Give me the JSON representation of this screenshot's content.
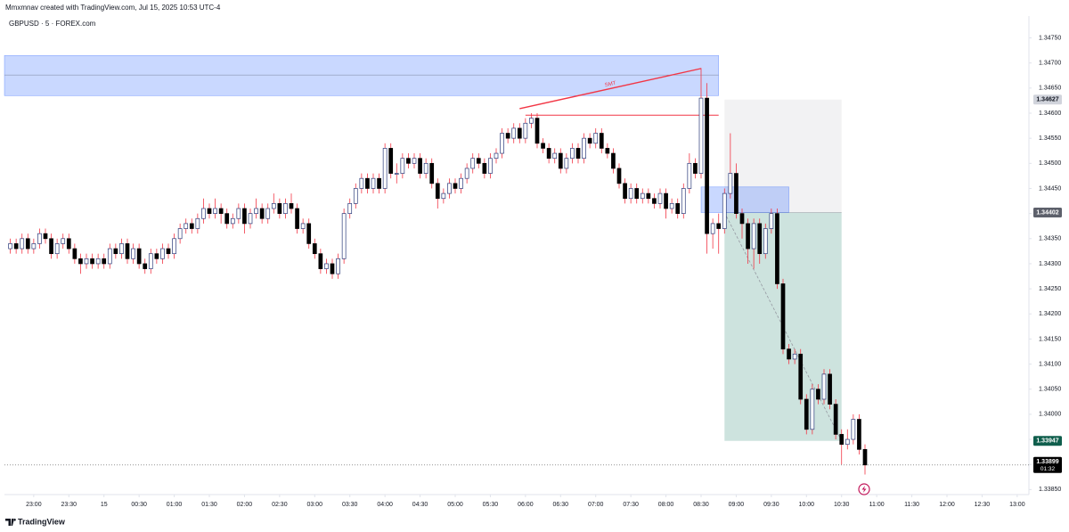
{
  "header": "Mmxmnav created with TradingView.com, Jul 15, 2025 10:53 UTC-4",
  "footer": "TradingView",
  "chart_data": {
    "type": "candlestick",
    "title": "GBPUSD · 5 · FOREX.com",
    "colors": {
      "up": "#ffffff",
      "up_border": "#2a3a7a",
      "down": "#000000",
      "wick": "#f23645"
    },
    "xlim": [
      -1,
      174
    ],
    "ylim": [
      1.3384,
      1.3479
    ],
    "xticks": [
      {
        "value": 4,
        "label": "23:00"
      },
      {
        "value": 10,
        "label": "23:30"
      },
      {
        "value": 16,
        "label": "15"
      },
      {
        "value": 22,
        "label": "00:30"
      },
      {
        "value": 28,
        "label": "01:00"
      },
      {
        "value": 34,
        "label": "01:30"
      },
      {
        "value": 40,
        "label": "02:00"
      },
      {
        "value": 46,
        "label": "02:30"
      },
      {
        "value": 52,
        "label": "03:00"
      },
      {
        "value": 58,
        "label": "03:30"
      },
      {
        "value": 64,
        "label": "04:00"
      },
      {
        "value": 70,
        "label": "04:30"
      },
      {
        "value": 76,
        "label": "05:00"
      },
      {
        "value": 82,
        "label": "05:30"
      },
      {
        "value": 88,
        "label": "06:00"
      },
      {
        "value": 94,
        "label": "06:30"
      },
      {
        "value": 100,
        "label": "07:00"
      },
      {
        "value": 106,
        "label": "07:30"
      },
      {
        "value": 112,
        "label": "08:00"
      },
      {
        "value": 118,
        "label": "08:30"
      },
      {
        "value": 124,
        "label": "09:00"
      },
      {
        "value": 130,
        "label": "09:30"
      },
      {
        "value": 136,
        "label": "10:00"
      },
      {
        "value": 142,
        "label": "10:30"
      },
      {
        "value": 148,
        "label": "11:00"
      },
      {
        "value": 154,
        "label": "11:30"
      },
      {
        "value": 160,
        "label": "12:00"
      },
      {
        "value": 166,
        "label": "12:30"
      },
      {
        "value": 172,
        "label": "13:00"
      }
    ],
    "yticks": [
      {
        "value": 1.3475,
        "label": "1.34750"
      },
      {
        "value": 1.347,
        "label": "1.34700"
      },
      {
        "value": 1.3465,
        "label": "1.34650"
      },
      {
        "value": 1.346,
        "label": "1.34600"
      },
      {
        "value": 1.3455,
        "label": "1.34550"
      },
      {
        "value": 1.345,
        "label": "1.34500"
      },
      {
        "value": 1.3445,
        "label": "1.34450"
      },
      {
        "value": 1.344,
        "label": "1.34400"
      },
      {
        "value": 1.3435,
        "label": "1.34350"
      },
      {
        "value": 1.343,
        "label": "1.34300"
      },
      {
        "value": 1.3425,
        "label": "1.34250"
      },
      {
        "value": 1.342,
        "label": "1.34200"
      },
      {
        "value": 1.3415,
        "label": "1.34150"
      },
      {
        "value": 1.341,
        "label": "1.34100"
      },
      {
        "value": 1.3405,
        "label": "1.34050"
      },
      {
        "value": 1.34,
        "label": "1.34000"
      },
      {
        "value": 1.3395,
        "label": "1.33950"
      },
      {
        "value": 1.339,
        "label": "1.33900"
      },
      {
        "value": 1.3385,
        "label": "1.33850"
      }
    ],
    "ohlc": [
      [
        1.3433,
        1.3435,
        1.3432,
        1.3434
      ],
      [
        1.3434,
        1.3435,
        1.3432,
        1.3433
      ],
      [
        1.3433,
        1.3436,
        1.3432,
        1.3435
      ],
      [
        1.3435,
        1.3436,
        1.3432,
        1.3433
      ],
      [
        1.3433,
        1.3435,
        1.3432,
        1.3434
      ],
      [
        1.3434,
        1.3437,
        1.3433,
        1.3436
      ],
      [
        1.3436,
        1.3437,
        1.3434,
        1.3435
      ],
      [
        1.3435,
        1.3436,
        1.3431,
        1.3432
      ],
      [
        1.3432,
        1.3435,
        1.3431,
        1.3434
      ],
      [
        1.3434,
        1.3436,
        1.3433,
        1.3435
      ],
      [
        1.3435,
        1.3436,
        1.3432,
        1.3433
      ],
      [
        1.3433,
        1.3434,
        1.343,
        1.3431
      ],
      [
        1.3431,
        1.3432,
        1.3428,
        1.343
      ],
      [
        1.343,
        1.3432,
        1.3429,
        1.3431
      ],
      [
        1.3431,
        1.3432,
        1.3429,
        1.343
      ],
      [
        1.343,
        1.3432,
        1.3429,
        1.3431
      ],
      [
        1.3431,
        1.3432,
        1.3429,
        1.343
      ],
      [
        1.343,
        1.3434,
        1.3429,
        1.3433
      ],
      [
        1.3433,
        1.3434,
        1.3431,
        1.3432
      ],
      [
        1.3432,
        1.3435,
        1.3431,
        1.3434
      ],
      [
        1.3434,
        1.3435,
        1.343,
        1.3431
      ],
      [
        1.3431,
        1.3434,
        1.343,
        1.3433
      ],
      [
        1.3433,
        1.3434,
        1.3429,
        1.343
      ],
      [
        1.343,
        1.3431,
        1.3428,
        1.3429
      ],
      [
        1.3429,
        1.3433,
        1.3428,
        1.3432
      ],
      [
        1.3432,
        1.3433,
        1.343,
        1.3431
      ],
      [
        1.3431,
        1.3434,
        1.343,
        1.3433
      ],
      [
        1.3433,
        1.3434,
        1.3431,
        1.3432
      ],
      [
        1.3432,
        1.3436,
        1.3431,
        1.3435
      ],
      [
        1.3435,
        1.3438,
        1.3434,
        1.3437
      ],
      [
        1.3437,
        1.3439,
        1.3436,
        1.3438
      ],
      [
        1.3438,
        1.3439,
        1.3436,
        1.3437
      ],
      [
        1.3437,
        1.344,
        1.3436,
        1.3439
      ],
      [
        1.3439,
        1.3443,
        1.3438,
        1.3441
      ],
      [
        1.3441,
        1.3442,
        1.3439,
        1.344
      ],
      [
        1.344,
        1.3443,
        1.3439,
        1.3441
      ],
      [
        1.3441,
        1.3442,
        1.3438,
        1.344
      ],
      [
        1.344,
        1.3441,
        1.3437,
        1.3438
      ],
      [
        1.3438,
        1.344,
        1.3437,
        1.3439
      ],
      [
        1.3439,
        1.3442,
        1.3438,
        1.3441
      ],
      [
        1.3441,
        1.3442,
        1.3436,
        1.3438
      ],
      [
        1.3438,
        1.3441,
        1.3437,
        1.344
      ],
      [
        1.344,
        1.3443,
        1.3439,
        1.3441
      ],
      [
        1.3441,
        1.3442,
        1.3438,
        1.3439
      ],
      [
        1.3439,
        1.3442,
        1.3438,
        1.3441
      ],
      [
        1.3441,
        1.3444,
        1.344,
        1.3442
      ],
      [
        1.3442,
        1.3443,
        1.3439,
        1.344
      ],
      [
        1.344,
        1.3443,
        1.3439,
        1.3442
      ],
      [
        1.3442,
        1.3444,
        1.344,
        1.3441
      ],
      [
        1.3441,
        1.3442,
        1.3436,
        1.3437
      ],
      [
        1.3437,
        1.3439,
        1.3436,
        1.3438
      ],
      [
        1.3438,
        1.3439,
        1.3433,
        1.3434
      ],
      [
        1.3434,
        1.3435,
        1.3431,
        1.3432
      ],
      [
        1.3432,
        1.3433,
        1.3428,
        1.3429
      ],
      [
        1.3429,
        1.3431,
        1.3428,
        1.343
      ],
      [
        1.343,
        1.3431,
        1.3427,
        1.3428
      ],
      [
        1.3428,
        1.3432,
        1.3427,
        1.3431
      ],
      [
        1.3431,
        1.3441,
        1.343,
        1.344
      ],
      [
        1.344,
        1.3443,
        1.3439,
        1.3442
      ],
      [
        1.3442,
        1.3446,
        1.3441,
        1.3445
      ],
      [
        1.3445,
        1.3448,
        1.3444,
        1.3447
      ],
      [
        1.3447,
        1.3448,
        1.3444,
        1.3445
      ],
      [
        1.3445,
        1.3448,
        1.3444,
        1.3447
      ],
      [
        1.3447,
        1.3448,
        1.3444,
        1.3445
      ],
      [
        1.3445,
        1.3454,
        1.3444,
        1.3453
      ],
      [
        1.3453,
        1.3454,
        1.3447,
        1.3448
      ],
      [
        1.3448,
        1.345,
        1.3446,
        1.3448
      ],
      [
        1.3448,
        1.3452,
        1.3447,
        1.3451
      ],
      [
        1.3451,
        1.3452,
        1.3449,
        1.345
      ],
      [
        1.345,
        1.3452,
        1.3449,
        1.3451
      ],
      [
        1.3451,
        1.3452,
        1.3447,
        1.3448
      ],
      [
        1.3448,
        1.3451,
        1.3447,
        1.345
      ],
      [
        1.345,
        1.3451,
        1.3445,
        1.3446
      ],
      [
        1.3446,
        1.3447,
        1.3441,
        1.3443
      ],
      [
        1.3443,
        1.3445,
        1.3442,
        1.3444
      ],
      [
        1.3444,
        1.3447,
        1.3443,
        1.3446
      ],
      [
        1.3446,
        1.3447,
        1.3444,
        1.3445
      ],
      [
        1.3445,
        1.3448,
        1.3444,
        1.3447
      ],
      [
        1.3447,
        1.345,
        1.3446,
        1.3449
      ],
      [
        1.3449,
        1.3452,
        1.3448,
        1.3451
      ],
      [
        1.3451,
        1.3452,
        1.3449,
        1.345
      ],
      [
        1.345,
        1.3451,
        1.3447,
        1.3448
      ],
      [
        1.3448,
        1.3452,
        1.3447,
        1.3451
      ],
      [
        1.3451,
        1.3453,
        1.345,
        1.3452
      ],
      [
        1.3452,
        1.3457,
        1.3451,
        1.3456
      ],
      [
        1.3456,
        1.3457,
        1.3454,
        1.3455
      ],
      [
        1.3455,
        1.3458,
        1.3454,
        1.3457
      ],
      [
        1.3457,
        1.3458,
        1.3454,
        1.3455
      ],
      [
        1.3455,
        1.3459,
        1.3454,
        1.3458
      ],
      [
        1.3458,
        1.346,
        1.3457,
        1.3459
      ],
      [
        1.3459,
        1.346,
        1.3453,
        1.3454
      ],
      [
        1.3454,
        1.3455,
        1.3452,
        1.3453
      ],
      [
        1.3453,
        1.3454,
        1.345,
        1.3451
      ],
      [
        1.3451,
        1.3453,
        1.345,
        1.3452
      ],
      [
        1.3452,
        1.3453,
        1.3448,
        1.3449
      ],
      [
        1.3449,
        1.3452,
        1.3448,
        1.3451
      ],
      [
        1.3451,
        1.3454,
        1.345,
        1.3453
      ],
      [
        1.3453,
        1.3454,
        1.345,
        1.3451
      ],
      [
        1.3451,
        1.3456,
        1.345,
        1.3455
      ],
      [
        1.3455,
        1.3456,
        1.3453,
        1.3454
      ],
      [
        1.3454,
        1.3457,
        1.3453,
        1.3456
      ],
      [
        1.3456,
        1.3457,
        1.3452,
        1.3453
      ],
      [
        1.3453,
        1.3454,
        1.3451,
        1.3452
      ],
      [
        1.3452,
        1.3453,
        1.3448,
        1.3449
      ],
      [
        1.3449,
        1.345,
        1.3445,
        1.3446
      ],
      [
        1.3446,
        1.3447,
        1.3442,
        1.3443
      ],
      [
        1.3443,
        1.3446,
        1.3442,
        1.3445
      ],
      [
        1.3445,
        1.3446,
        1.3442,
        1.3443
      ],
      [
        1.3443,
        1.3445,
        1.3442,
        1.3444
      ],
      [
        1.3444,
        1.3445,
        1.3442,
        1.3443
      ],
      [
        1.3443,
        1.3444,
        1.3441,
        1.3442
      ],
      [
        1.3442,
        1.3445,
        1.3441,
        1.3444
      ],
      [
        1.3444,
        1.3445,
        1.3439,
        1.3441
      ],
      [
        1.3441,
        1.3443,
        1.344,
        1.3442
      ],
      [
        1.3442,
        1.3443,
        1.3439,
        1.344
      ],
      [
        1.344,
        1.3446,
        1.3439,
        1.3445
      ],
      [
        1.3445,
        1.3452,
        1.3444,
        1.345
      ],
      [
        1.345,
        1.3451,
        1.3447,
        1.3448
      ],
      [
        1.3448,
        1.3469,
        1.3447,
        1.3463
      ],
      [
        1.3463,
        1.3466,
        1.3432,
        1.3436
      ],
      [
        1.3436,
        1.3439,
        1.3433,
        1.3438
      ],
      [
        1.3438,
        1.344,
        1.3432,
        1.3437
      ],
      [
        1.3437,
        1.3445,
        1.3436,
        1.3444
      ],
      [
        1.3444,
        1.3456,
        1.3443,
        1.3448
      ],
      [
        1.3448,
        1.345,
        1.3439,
        1.344
      ],
      [
        1.344,
        1.3441,
        1.3435,
        1.3438
      ],
      [
        1.3438,
        1.3439,
        1.343,
        1.3433
      ],
      [
        1.3433,
        1.3439,
        1.3429,
        1.3438
      ],
      [
        1.3438,
        1.3439,
        1.343,
        1.3432
      ],
      [
        1.3432,
        1.3438,
        1.3431,
        1.3437
      ],
      [
        1.3437,
        1.3441,
        1.3436,
        1.344
      ],
      [
        1.344,
        1.3441,
        1.3425,
        1.3426
      ],
      [
        1.3426,
        1.3427,
        1.3412,
        1.3413
      ],
      [
        1.3413,
        1.3414,
        1.341,
        1.3411
      ],
      [
        1.3411,
        1.3413,
        1.341,
        1.3412
      ],
      [
        1.3412,
        1.3413,
        1.3402,
        1.3403
      ],
      [
        1.3403,
        1.3404,
        1.3396,
        1.3397
      ],
      [
        1.3397,
        1.3406,
        1.3396,
        1.3405
      ],
      [
        1.3405,
        1.3406,
        1.3402,
        1.3403
      ],
      [
        1.3403,
        1.3409,
        1.3402,
        1.3408
      ],
      [
        1.3408,
        1.3409,
        1.3401,
        1.3402
      ],
      [
        1.3402,
        1.3403,
        1.3395,
        1.3396
      ],
      [
        1.3396,
        1.3397,
        1.339,
        1.3394
      ],
      [
        1.3394,
        1.3397,
        1.3393,
        1.3395
      ],
      [
        1.3395,
        1.34,
        1.3394,
        1.3399
      ],
      [
        1.3399,
        1.34,
        1.3392,
        1.3393
      ],
      [
        1.3393,
        1.3394,
        1.3388,
        1.33899
      ]
    ],
    "last": {
      "value": 1.33899,
      "label": "1.33899",
      "countdown": "01:32"
    },
    "zone": {
      "x": [
        -1,
        121
      ],
      "price": [
        1.34715,
        1.34635
      ],
      "mid": 1.34676
    },
    "gap": {
      "x": [
        118,
        133
      ],
      "price": [
        1.34453,
        1.34402
      ]
    },
    "smt": {
      "label": "SMT",
      "x": [
        87,
        118
      ],
      "price": [
        1.34609,
        1.34689
      ]
    },
    "level": {
      "x": [
        88,
        121
      ],
      "price": 1.34596
    },
    "position": {
      "x": [
        122,
        142
      ],
      "stop": {
        "value": 1.34627,
        "label": "1.34627"
      },
      "entry": {
        "value": 1.34402,
        "label": "1.34402"
      },
      "target": {
        "value": 1.33947,
        "label": "1.33947"
      }
    }
  }
}
